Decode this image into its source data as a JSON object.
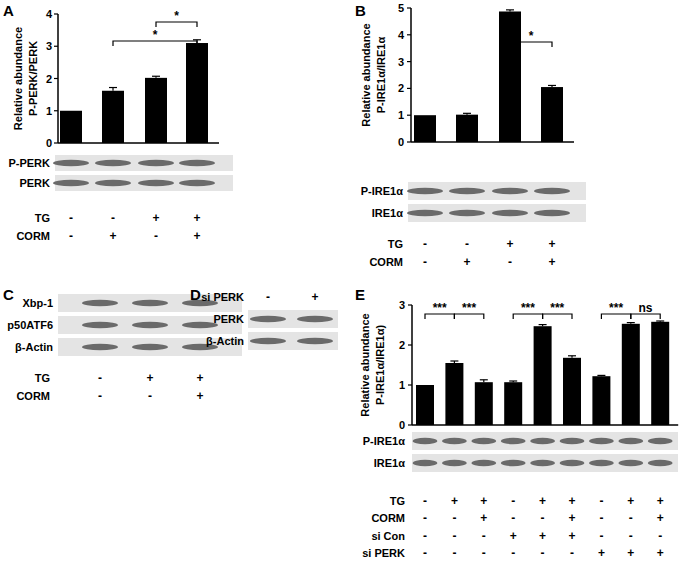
{
  "chart_data": [
    {
      "type": "bar",
      "title": "A",
      "ylabel": [
        "Relative abundance",
        "P-PERK/PERK"
      ],
      "values": [
        1,
        1.62,
        2.02,
        3.1
      ],
      "errors": [
        0,
        0.1,
        0.05,
        0.1
      ],
      "color": "#000000",
      "ylim": [
        0,
        4
      ],
      "yticks": [
        0,
        1,
        2,
        3,
        4
      ],
      "significance": [
        {
          "from": 2,
          "to": 3,
          "label": "*"
        },
        {
          "from": 1,
          "to": 3,
          "label": "*"
        }
      ],
      "blot_rows": [
        "P-PERK",
        "PERK"
      ],
      "conditions": [
        {
          "name": "TG",
          "values": [
            "-",
            "-",
            "+",
            "+"
          ]
        },
        {
          "name": "CORM",
          "values": [
            "-",
            "+",
            "-",
            "+"
          ]
        }
      ]
    },
    {
      "type": "bar",
      "title": "B",
      "ylabel": [
        "Relative abundance",
        "P-IRE1α/IRE1α"
      ],
      "values": [
        1,
        1.02,
        4.87,
        2.05
      ],
      "errors": [
        0,
        0.05,
        0.06,
        0.06
      ],
      "color": "#000000",
      "ylim": [
        0,
        5
      ],
      "yticks": [
        0,
        1,
        2,
        3,
        4,
        5
      ],
      "significance": [
        {
          "from": 2,
          "to": 3,
          "label": "*"
        }
      ],
      "blot_rows": [
        "P-IRE1α",
        "IRE1α"
      ],
      "conditions": [
        {
          "name": "TG",
          "values": [
            "-",
            "-",
            "+",
            "+"
          ]
        },
        {
          "name": "CORM",
          "values": [
            "-",
            "+",
            "-",
            "+"
          ]
        }
      ]
    },
    {
      "type": "blot",
      "title": "C",
      "blot_rows": [
        "Xbp-1",
        "p50ATF6",
        "β-Actin"
      ],
      "conditions": [
        {
          "name": "TG",
          "values": [
            "-",
            "+",
            "+"
          ]
        },
        {
          "name": "CORM",
          "values": [
            "-",
            "-",
            "+"
          ]
        }
      ]
    },
    {
      "type": "blot",
      "title": "D",
      "blot_rows": [
        "PERK",
        "β-Actin"
      ],
      "conditions": [
        {
          "name": "si PERK",
          "values": [
            "-",
            "+"
          ]
        }
      ]
    },
    {
      "type": "bar",
      "title": "E",
      "ylabel": [
        "Relative abundance",
        "P-IRE1α/IRE1α)"
      ],
      "values": [
        1,
        1.55,
        1.07,
        1.07,
        2.47,
        1.68,
        1.22,
        2.53,
        2.58
      ],
      "errors": [
        0,
        0.05,
        0.06,
        0.03,
        0.04,
        0.05,
        0.02,
        0.03,
        0.02
      ],
      "color": "#000000",
      "ylim": [
        0,
        3
      ],
      "yticks": [
        0,
        1,
        2,
        3
      ],
      "significance": [
        {
          "from": 0,
          "to": 1,
          "label": "***"
        },
        {
          "from": 1,
          "to": 2,
          "label": "***"
        },
        {
          "from": 3,
          "to": 4,
          "label": "***"
        },
        {
          "from": 4,
          "to": 5,
          "label": "***"
        },
        {
          "from": 6,
          "to": 7,
          "label": "***"
        },
        {
          "from": 7,
          "to": 8,
          "label": "ns"
        }
      ],
      "blot_rows": [
        "P-IRE1α",
        "IRE1α"
      ],
      "conditions": [
        {
          "name": "TG",
          "values": [
            "-",
            "+",
            "+",
            "-",
            "+",
            "+",
            "-",
            "+",
            "+"
          ]
        },
        {
          "name": "CORM",
          "values": [
            "-",
            "-",
            "+",
            "-",
            "-",
            "+",
            "-",
            "-",
            "+"
          ]
        },
        {
          "name": "si Con",
          "values": [
            "-",
            "-",
            "-",
            "+",
            "+",
            "+",
            "-",
            "-",
            "-"
          ]
        },
        {
          "name": "si PERK",
          "values": [
            "-",
            "-",
            "-",
            "-",
            "-",
            "-",
            "+",
            "+",
            "+"
          ]
        }
      ]
    }
  ]
}
